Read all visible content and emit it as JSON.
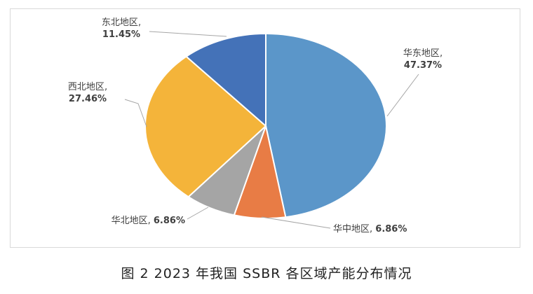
{
  "chart_data": {
    "type": "pie",
    "title": "",
    "slices": [
      {
        "name": "华东地区",
        "value": 47.37,
        "label_value": "47.37%",
        "color": "#5B96C9"
      },
      {
        "name": "华中地区",
        "value": 6.86,
        "label_value": "6.86%",
        "color": "#E87C45"
      },
      {
        "name": "华北地区",
        "value": 6.86,
        "label_value": "6.86%",
        "color": "#A5A5A5"
      },
      {
        "name": "西北地区",
        "value": 27.46,
        "label_value": "27.46%",
        "color": "#F4B43A"
      },
      {
        "name": "东北地区",
        "value": 11.45,
        "label_value": "11.45%",
        "color": "#4472B8"
      }
    ],
    "start_angle": "12 o'clock",
    "direction": "clockwise",
    "legend": "none"
  },
  "caption": "图 2  2023 年我国 SSBR 各区域产能分布情况"
}
